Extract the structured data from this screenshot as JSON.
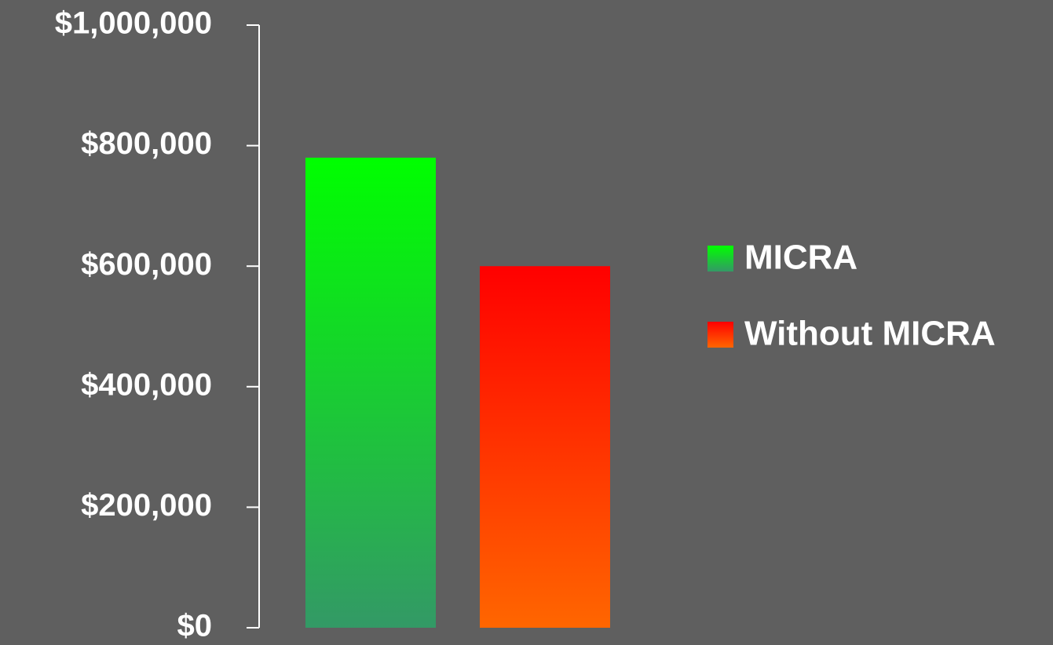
{
  "chart_data": {
    "type": "bar",
    "categories": [
      null
    ],
    "series": [
      {
        "name": "MICRA",
        "colors": [
          "#00ff00",
          "#339966"
        ],
        "values": [
          780000
        ]
      },
      {
        "name": "Without MICRA",
        "colors": [
          "#ff0000",
          "#ff6600"
        ],
        "values": [
          600000
        ]
      }
    ],
    "ylim": [
      0,
      1000000
    ],
    "yticks": [
      {
        "value": 0,
        "label": "$0"
      },
      {
        "value": 200000,
        "label": "$200,000"
      },
      {
        "value": 400000,
        "label": "$400,000"
      },
      {
        "value": 600000,
        "label": "$600,000"
      },
      {
        "value": 800000,
        "label": "$800,000"
      },
      {
        "value": 1000000,
        "label": "$1,000,000"
      }
    ],
    "legend": "right"
  }
}
